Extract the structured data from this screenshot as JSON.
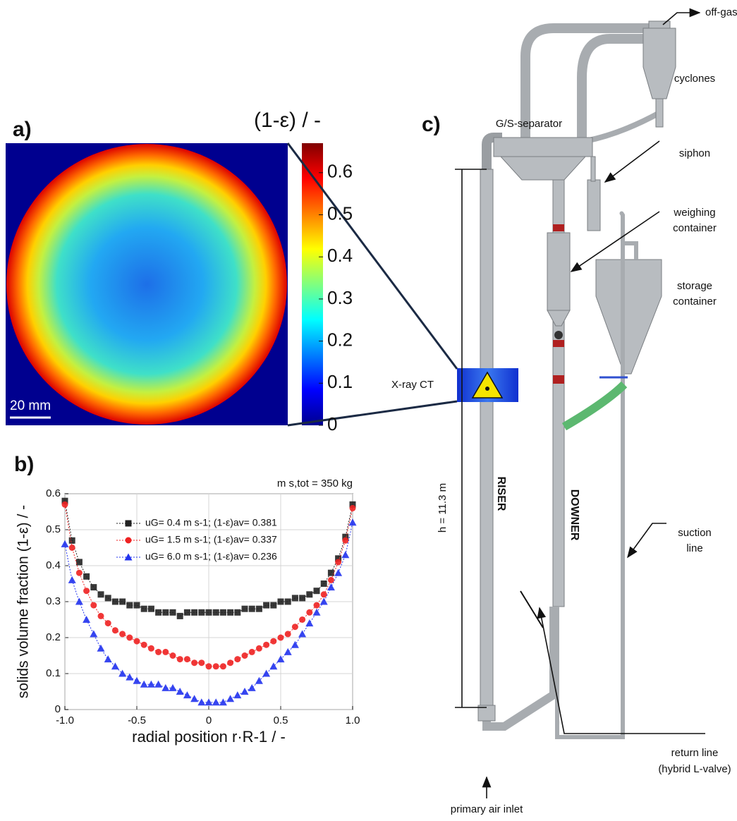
{
  "chart_data": [
    {
      "type": "colormap",
      "panel_label": "a)",
      "colorbar_title": "(1-ε)  /  -",
      "colormap": "jet",
      "clim": [
        0,
        0.67
      ],
      "cticks": [
        0,
        0.1,
        0.2,
        0.3,
        0.4,
        0.5,
        0.6
      ],
      "scale_bar": "20 mm"
    },
    {
      "type": "line",
      "panel_label": "b)",
      "annotation": "m s,tot =  350 kg",
      "xlabel": "radial position  r·R-1  /  -",
      "ylabel": "solids volume fraction  (1-ε)  /  -",
      "xlim": [
        -1,
        1
      ],
      "ylim": [
        0,
        0.6
      ],
      "xticks": [
        {
          "value": -1,
          "label": "-1.0"
        },
        -0.5,
        0,
        0.5,
        {
          "value": 1,
          "label": "1.0"
        }
      ],
      "yticks": [
        0,
        0.1,
        0.2,
        0.3,
        0.4,
        0.5,
        0.6
      ],
      "grid": true,
      "x": [
        -1,
        -0.95,
        -0.9,
        -0.85,
        -0.8,
        -0.75,
        -0.7,
        -0.65,
        -0.6,
        -0.55,
        -0.5,
        -0.45,
        -0.4,
        -0.35,
        -0.3,
        -0.25,
        -0.2,
        -0.15,
        -0.1,
        -0.05,
        0,
        0.05,
        0.1,
        0.15,
        0.2,
        0.25,
        0.3,
        0.35,
        0.4,
        0.45,
        0.5,
        0.55,
        0.6,
        0.65,
        0.7,
        0.75,
        0.8,
        0.85,
        0.9,
        0.95,
        1
      ],
      "series": [
        {
          "name": "uG= 0.4 m s-1; (1-ε)av= 0.381",
          "color": "#222222",
          "marker": "square",
          "values": [
            0.58,
            0.47,
            0.41,
            0.37,
            0.34,
            0.32,
            0.31,
            0.3,
            0.3,
            0.29,
            0.29,
            0.28,
            0.28,
            0.27,
            0.27,
            0.27,
            0.26,
            0.27,
            0.27,
            0.27,
            0.27,
            0.27,
            0.27,
            0.27,
            0.27,
            0.28,
            0.28,
            0.28,
            0.29,
            0.29,
            0.3,
            0.3,
            0.31,
            0.31,
            0.32,
            0.33,
            0.35,
            0.38,
            0.42,
            0.48,
            0.57
          ]
        },
        {
          "name": "uG= 1.5 m s-1; (1-ε)av= 0.337",
          "color": "#ee2222",
          "marker": "circle",
          "values": [
            0.57,
            0.45,
            0.38,
            0.33,
            0.29,
            0.26,
            0.24,
            0.22,
            0.21,
            0.2,
            0.19,
            0.18,
            0.17,
            0.16,
            0.16,
            0.15,
            0.14,
            0.14,
            0.13,
            0.13,
            0.12,
            0.12,
            0.12,
            0.13,
            0.14,
            0.15,
            0.16,
            0.17,
            0.18,
            0.19,
            0.2,
            0.21,
            0.23,
            0.25,
            0.27,
            0.29,
            0.32,
            0.36,
            0.41,
            0.47,
            0.56
          ]
        },
        {
          "name": "uG= 6.0 m s-1; (1-ε)av= 0.236",
          "color": "#2233ee",
          "marker": "triangle",
          "values": [
            0.46,
            0.36,
            0.3,
            0.25,
            0.21,
            0.17,
            0.14,
            0.12,
            0.1,
            0.09,
            0.08,
            0.07,
            0.07,
            0.07,
            0.06,
            0.06,
            0.05,
            0.04,
            0.03,
            0.02,
            0.02,
            0.02,
            0.02,
            0.03,
            0.04,
            0.05,
            0.06,
            0.08,
            0.1,
            0.12,
            0.14,
            0.16,
            0.18,
            0.21,
            0.24,
            0.27,
            0.3,
            0.34,
            0.38,
            0.43,
            0.52
          ]
        }
      ]
    }
  ],
  "diagram": {
    "panel_label": "c)",
    "off_gas": "off-gas",
    "cyclones": "cyclones",
    "separator": "G/S-separator",
    "siphon": "siphon",
    "weighing": [
      "weighing",
      "container"
    ],
    "storage": [
      "storage",
      "container"
    ],
    "xray": "X-ray CT",
    "riser": "RISER",
    "downer": "DOWNER",
    "height": "h = 11.3 m",
    "suction": [
      "suction",
      "line"
    ],
    "return_line": [
      "return line",
      "(hybrid L-valve)"
    ],
    "air_inlet": "primary air inlet"
  }
}
